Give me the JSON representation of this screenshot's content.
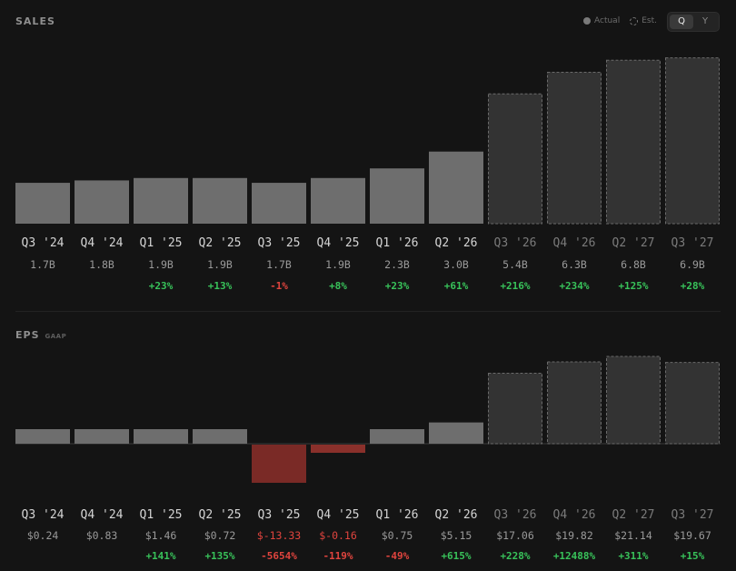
{
  "sales_title": "SALES",
  "eps_title": "EPS",
  "eps_subtitle": "GAAP",
  "legend": {
    "actual": "Actual",
    "est": "Est."
  },
  "toggle": {
    "options": [
      "Q",
      "Y"
    ],
    "active": "Q"
  },
  "colors": {
    "actual_bar": "#6e6e6e",
    "estimate_bar": "#333333",
    "negative_bar": "#7a2a26",
    "negative_bar_light": "#8a302b",
    "positive_text": "#38c25a",
    "negative_text": "#e0443e",
    "label_actual": "#d4d4d4",
    "label_estimate": "#7a7a7a"
  },
  "chart_data": [
    {
      "type": "bar",
      "title": "SALES",
      "categories": [
        "Q3 '24",
        "Q4 '24",
        "Q1 '25",
        "Q2 '25",
        "Q3 '25",
        "Q4 '25",
        "Q1 '26",
        "Q2 '26",
        "Q3 '26",
        "Q4 '26",
        "Q2 '27",
        "Q3 '27"
      ],
      "values": [
        1.7,
        1.8,
        1.9,
        1.9,
        1.7,
        1.9,
        2.3,
        3.0,
        5.4,
        6.3,
        6.8,
        6.9
      ],
      "value_labels": [
        "1.7B",
        "1.8B",
        "1.9B",
        "1.9B",
        "1.7B",
        "1.9B",
        "2.3B",
        "3.0B",
        "5.4B",
        "6.3B",
        "6.8B",
        "6.9B"
      ],
      "changes": [
        "",
        "",
        "+23%",
        "+13%",
        "-1%",
        "+8%",
        "+23%",
        "+61%",
        "+216%",
        "+234%",
        "+125%",
        "+28%"
      ],
      "estimate": [
        false,
        false,
        false,
        false,
        false,
        false,
        false,
        false,
        true,
        true,
        true,
        true
      ],
      "ylim": [
        0,
        7.0
      ]
    },
    {
      "type": "bar",
      "title": "EPS",
      "categories": [
        "Q3 '24",
        "Q4 '24",
        "Q1 '25",
        "Q2 '25",
        "Q3 '25",
        "Q4 '25",
        "Q1 '26",
        "Q2 '26",
        "Q3 '26",
        "Q4 '26",
        "Q2 '27",
        "Q3 '27"
      ],
      "values": [
        0.24,
        0.83,
        1.46,
        0.72,
        -13.33,
        -0.16,
        0.75,
        5.15,
        17.06,
        19.82,
        21.14,
        19.67
      ],
      "value_labels": [
        "$0.24",
        "$0.83",
        "$1.46",
        "$0.72",
        "$-13.33",
        "$-0.16",
        "$0.75",
        "$5.15",
        "$17.06",
        "$19.82",
        "$21.14",
        "$19.67"
      ],
      "changes": [
        "",
        "",
        "+141%",
        "+135%",
        "-5654%",
        "-119%",
        "-49%",
        "+615%",
        "+228%",
        "+12488%",
        "+311%",
        "+15%"
      ],
      "estimate": [
        false,
        false,
        false,
        false,
        false,
        false,
        false,
        false,
        true,
        true,
        true,
        true
      ]
    }
  ]
}
